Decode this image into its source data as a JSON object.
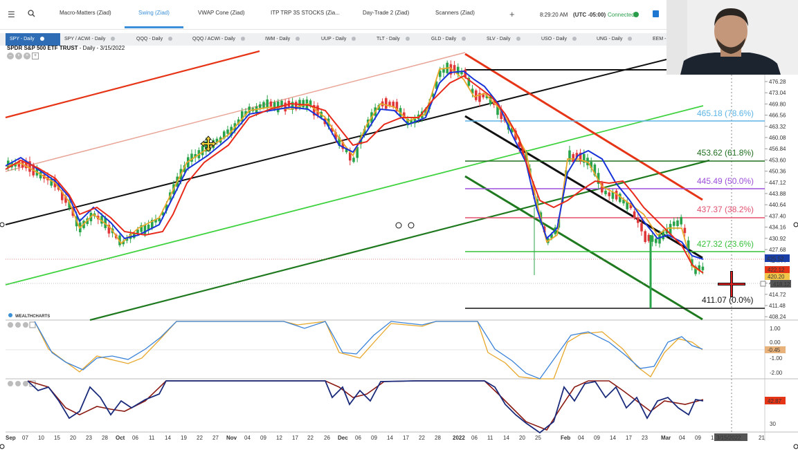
{
  "topbar": {
    "menu_icon": "menu-icon",
    "search_icon": "search-icon",
    "tabs": [
      "Macro-Matters (Ziad)",
      "Swing (Ziad)",
      "VWAP Cone (Ziad)",
      "ITP TRP 3S STOCKS (Zia...",
      "Day-Trade 2 (Ziad)",
      "Scanners (Ziad)"
    ],
    "active_tab": "Swing (Ziad)",
    "add_tab": "+",
    "time": "8:29:20 AM",
    "timezone": "(UTC -05:00)",
    "connection": "Connected",
    "accent": "#3a8fd8"
  },
  "watchlist": {
    "items": [
      "SPY - Daily",
      "SPY / ACWI - Daily",
      "QQQ - Daily",
      "QQQ / ACWI - Daily",
      "IWM - Daily",
      "UUP - Daily",
      "TLT - Daily",
      "GLD - Daily",
      "SLV - Daily",
      "USO - Daily",
      "UNG - Daily",
      "EEM -"
    ]
  },
  "chart": {
    "symbol_name": "SPDR S&P 500 ETF TRUST",
    "subtitle": "- Daily - 3/15/2022",
    "logo": "WEALTHCHARTS",
    "price_ticks": [
      "476.28",
      "473.04",
      "469.80",
      "466.56",
      "463.32",
      "460.08",
      "456.84",
      "453.60",
      "450.36",
      "447.12",
      "443.88",
      "440.64",
      "437.40",
      "434.16",
      "430.92",
      "427.68",
      "424.44",
      "421.20",
      "417.96",
      "414.72",
      "411.48",
      "408.24"
    ],
    "price_badges": {
      "last": "425.52",
      "red": "422.12",
      "yellow": "420.20",
      "cursor": "418.12"
    },
    "fib_levels": [
      {
        "label": "465.18 (78.6%)",
        "color": "#5bb4e6"
      },
      {
        "label": "453.62 (61.8%)",
        "color": "#1f6e1f"
      },
      {
        "label": "445.49 (50.0%)",
        "color": "#9b4ddb"
      },
      {
        "label": "437.37 (38.2%)",
        "color": "#e2506e"
      },
      {
        "label": "427.32 (23.6%)",
        "color": "#36c13a"
      },
      {
        "label": "411.07 (0.0%)",
        "color": "#111111"
      }
    ],
    "osc1_ticks": [
      "1.00",
      "0.00",
      "-1.00",
      "-2.00"
    ],
    "osc1_badge": "-0.45",
    "osc2_ticks": [
      "30"
    ],
    "osc2_badge": "42.87",
    "date_ticks": [
      "Sep",
      "07",
      "10",
      "15",
      "20",
      "23",
      "28",
      "Oct",
      "06",
      "11",
      "14",
      "19",
      "22",
      "27",
      "Nov",
      "04",
      "09",
      "12",
      "17",
      "22",
      "26",
      "Dec",
      "06",
      "09",
      "14",
      "17",
      "22",
      "28",
      "2022",
      "06",
      "11",
      "14",
      "20",
      "25",
      "Feb",
      "04",
      "09",
      "14",
      "17",
      "23",
      "Mar",
      "04",
      "09",
      "1",
      "8",
      "21"
    ],
    "cursor_date": "3/15/2022"
  }
}
